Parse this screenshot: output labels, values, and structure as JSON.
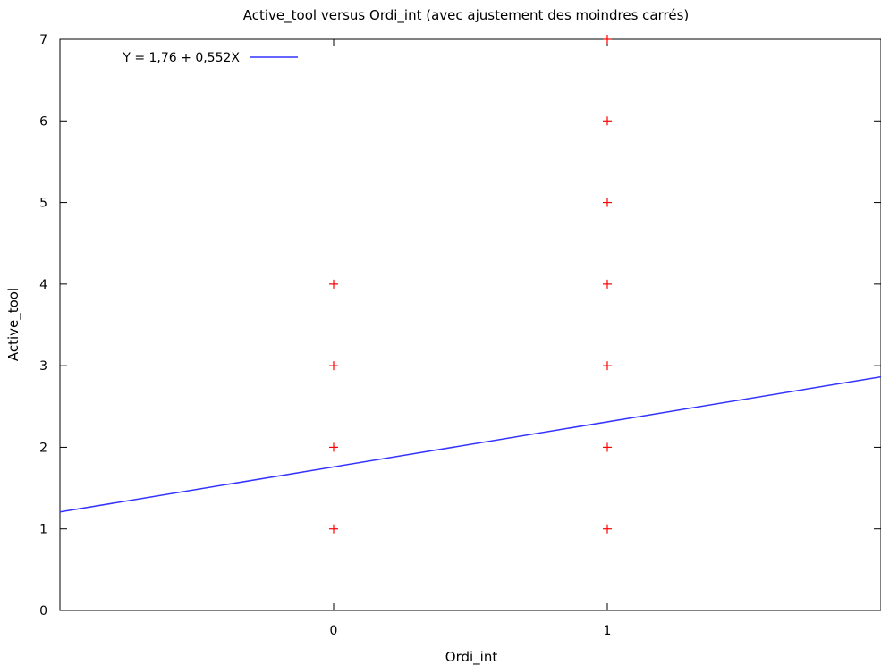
{
  "chart_data": {
    "type": "scatter",
    "title": "Active_tool versus Ordi_int (avec ajustement des moindres carrés)",
    "xlabel": "Ordi_int",
    "ylabel": "Active_tool",
    "xlim": [
      -1,
      2
    ],
    "ylim": [
      0,
      7
    ],
    "xticks": [
      0,
      1
    ],
    "yticks": [
      0,
      1,
      2,
      3,
      4,
      5,
      6,
      7
    ],
    "grid": false,
    "legend_position": "top-left",
    "points": [
      {
        "x": 0,
        "y": 1
      },
      {
        "x": 0,
        "y": 2
      },
      {
        "x": 0,
        "y": 3
      },
      {
        "x": 0,
        "y": 4
      },
      {
        "x": 1,
        "y": 1
      },
      {
        "x": 1,
        "y": 2
      },
      {
        "x": 1,
        "y": 3
      },
      {
        "x": 1,
        "y": 4
      },
      {
        "x": 1,
        "y": 5
      },
      {
        "x": 1,
        "y": 6
      },
      {
        "x": 1,
        "y": 7
      }
    ],
    "fit": {
      "label": "Y = 1,76 + 0,552X",
      "intercept": 1.76,
      "slope": 0.552
    },
    "colors": {
      "points": "#ff0000",
      "fit_line": "#3333ff",
      "axes": "#000000"
    }
  }
}
